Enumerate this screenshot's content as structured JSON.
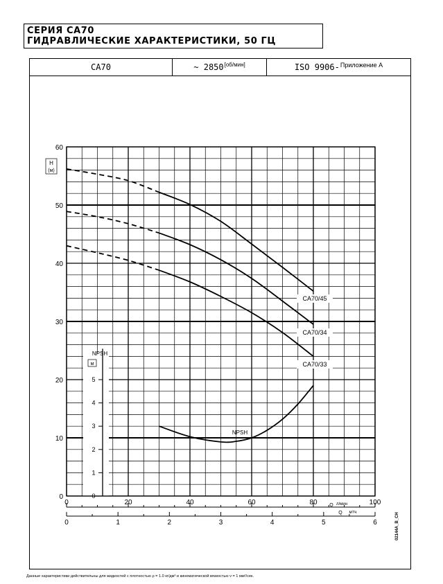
{
  "header": {
    "line1": "СЕРИЯ CA70",
    "line2": "ГИДРАВЛИЧЕСКИЕ ХАРАКТЕРИСТИКИ, 50 ГЦ"
  },
  "table_header": {
    "model": "CA70",
    "speed": "~ 2850",
    "speed_unit": "[об/мин]",
    "standard": "ISO 9906-",
    "annex": "Приложение А"
  },
  "chart_data": {
    "type": "line",
    "y_axis": {
      "label_top": "H",
      "label_unit": "(м)",
      "range": [
        0,
        60
      ],
      "ticks": [
        0,
        10,
        20,
        30,
        40,
        50,
        60
      ]
    },
    "x_axis_primary": {
      "unit_top": "л/мин",
      "unit": "Q",
      "range": [
        0,
        100
      ],
      "ticks": [
        0,
        20,
        40,
        60,
        80,
        100
      ]
    },
    "x_axis_secondary": {
      "unit_top": "м³/ч",
      "unit": "Q",
      "range": [
        0,
        6
      ],
      "ticks": [
        0,
        1,
        2,
        3,
        4,
        5,
        6
      ]
    },
    "npsh_axis": {
      "label": "NPSH",
      "unit": "м",
      "range": [
        0,
        5
      ],
      "ticks": [
        0,
        1,
        2,
        3,
        4,
        5
      ]
    },
    "grid": true,
    "series": [
      {
        "name": "CA70/45",
        "dashed": [
          [
            0,
            56.2
          ],
          [
            10,
            55.3
          ],
          [
            20,
            54.2
          ],
          [
            30,
            52.2
          ]
        ],
        "solid": [
          [
            30,
            52.2
          ],
          [
            40,
            50.1
          ],
          [
            50,
            47.2
          ],
          [
            60,
            43.3
          ],
          [
            70,
            39.3
          ],
          [
            80,
            35.2
          ]
        ]
      },
      {
        "name": "CA70/34",
        "dashed": [
          [
            0,
            48.9
          ],
          [
            10,
            48.0
          ],
          [
            20,
            46.8
          ],
          [
            30,
            45.2
          ]
        ],
        "solid": [
          [
            30,
            45.2
          ],
          [
            40,
            43.2
          ],
          [
            50,
            40.6
          ],
          [
            60,
            37.4
          ],
          [
            70,
            33.5
          ],
          [
            80,
            29.5
          ]
        ]
      },
      {
        "name": "CA70/33",
        "dashed": [
          [
            0,
            43.0
          ],
          [
            10,
            41.8
          ],
          [
            20,
            40.5
          ],
          [
            30,
            38.8
          ]
        ],
        "solid": [
          [
            30,
            38.8
          ],
          [
            40,
            36.8
          ],
          [
            50,
            34.3
          ],
          [
            60,
            31.5
          ],
          [
            70,
            28.1
          ],
          [
            80,
            24.0
          ]
        ]
      },
      {
        "name": "NPSH",
        "solid": [
          [
            30,
            12.0
          ],
          [
            40,
            10.2
          ],
          [
            50,
            9.3
          ],
          [
            55,
            9.4
          ],
          [
            60,
            10.0
          ],
          [
            65,
            11.3
          ],
          [
            70,
            13.2
          ],
          [
            75,
            15.8
          ],
          [
            80,
            19.0
          ]
        ]
      }
    ]
  },
  "footnote": "Данные характеристики действительны для жидкостей с  плотностью ρ = 1.0 кг/дм³ и кинематической вязкостью ν = 1 мм²/сек.",
  "side_code": "02144A_B_CH"
}
